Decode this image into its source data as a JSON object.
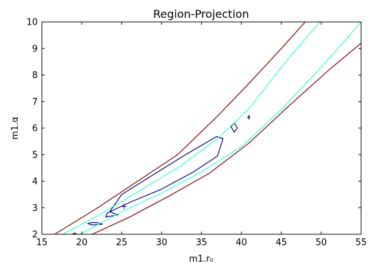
{
  "chart_data": {
    "type": "contour",
    "title": "Region-Projection",
    "xlabel": "m1.r₀",
    "ylabel": "m1.α",
    "xlim": [
      15,
      55
    ],
    "ylim": [
      2,
      10
    ],
    "xticks": [
      "15",
      "20",
      "25",
      "30",
      "35",
      "40",
      "45",
      "50",
      "55"
    ],
    "yticks": [
      "2",
      "3",
      "4",
      "5",
      "6",
      "7",
      "8",
      "9",
      "10"
    ],
    "grid": false,
    "best_fit": {
      "x": 25.3,
      "y": 3.05,
      "marker": "+"
    },
    "contours": [
      {
        "level": "inner",
        "color": "#00007f",
        "paths": [
          {
            "closed": true,
            "points": [
              [
                23.0,
                2.65
              ],
              [
                23.2,
                2.8
              ],
              [
                26,
                3.2
              ],
              [
                30,
                3.7
              ],
              [
                34,
                4.35
              ],
              [
                37,
                4.95
              ],
              [
                37.7,
                5.6
              ],
              [
                36.9,
                5.68
              ],
              [
                33,
                5.0
              ],
              [
                29,
                4.25
              ],
              [
                25,
                3.5
              ],
              [
                23.5,
                2.85
              ],
              [
                24.5,
                2.73
              ],
              [
                23.0,
                2.65
              ]
            ]
          },
          {
            "closed": true,
            "points": [
              [
                20.8,
                2.4
              ],
              [
                21.3,
                2.45
              ],
              [
                22.1,
                2.43
              ],
              [
                22.6,
                2.38
              ],
              [
                21.3,
                2.35
              ],
              [
                20.8,
                2.4
              ]
            ]
          },
          {
            "closed": true,
            "points": [
              [
                38.7,
                6.05
              ],
              [
                39.1,
                6.2
              ],
              [
                39.5,
                6.0
              ],
              [
                39.1,
                5.85
              ],
              [
                38.7,
                6.05
              ]
            ]
          },
          {
            "closed": true,
            "points": [
              [
                40.8,
                6.4
              ],
              [
                40.95,
                6.47
              ],
              [
                41.05,
                6.4
              ],
              [
                40.95,
                6.35
              ],
              [
                40.8,
                6.4
              ]
            ]
          },
          {
            "closed": false,
            "points": [
              [
                18.8,
                2.0
              ],
              [
                19.1,
                2.05
              ],
              [
                19.4,
                2.0
              ]
            ]
          }
        ]
      },
      {
        "level": "middle",
        "color": "#33ffcc",
        "paths": [
          {
            "closed": false,
            "points": [
              [
                17.6,
                2.0
              ],
              [
                22,
                2.7
              ],
              [
                27,
                3.6
              ],
              [
                32,
                4.5
              ],
              [
                37,
                5.6
              ],
              [
                41,
                6.75
              ],
              [
                45,
                8.3
              ],
              [
                49.8,
                10.0
              ]
            ]
          },
          {
            "closed": false,
            "points": [
              [
                19.8,
                2.0
              ],
              [
                25,
                2.85
              ],
              [
                30,
                3.55
              ],
              [
                35,
                4.35
              ],
              [
                40,
                5.3
              ],
              [
                45,
                6.7
              ],
              [
                50,
                8.3
              ],
              [
                55,
                10.0
              ]
            ]
          }
        ]
      },
      {
        "level": "outer",
        "color": "#7f0000",
        "paths": [
          {
            "closed": false,
            "points": [
              [
                16.6,
                2.0
              ],
              [
                22,
                3.0
              ],
              [
                27,
                4.0
              ],
              [
                32,
                5.0
              ],
              [
                37,
                6.45
              ],
              [
                41,
                7.7
              ],
              [
                45,
                9.0
              ],
              [
                48,
                10.0
              ]
            ]
          },
          {
            "closed": false,
            "points": [
              [
                21.3,
                2.0
              ],
              [
                26,
                2.65
              ],
              [
                31,
                3.45
              ],
              [
                36,
                4.3
              ],
              [
                41,
                5.45
              ],
              [
                46,
                6.85
              ],
              [
                51,
                8.2
              ],
              [
                55,
                9.2
              ]
            ]
          }
        ]
      }
    ]
  }
}
